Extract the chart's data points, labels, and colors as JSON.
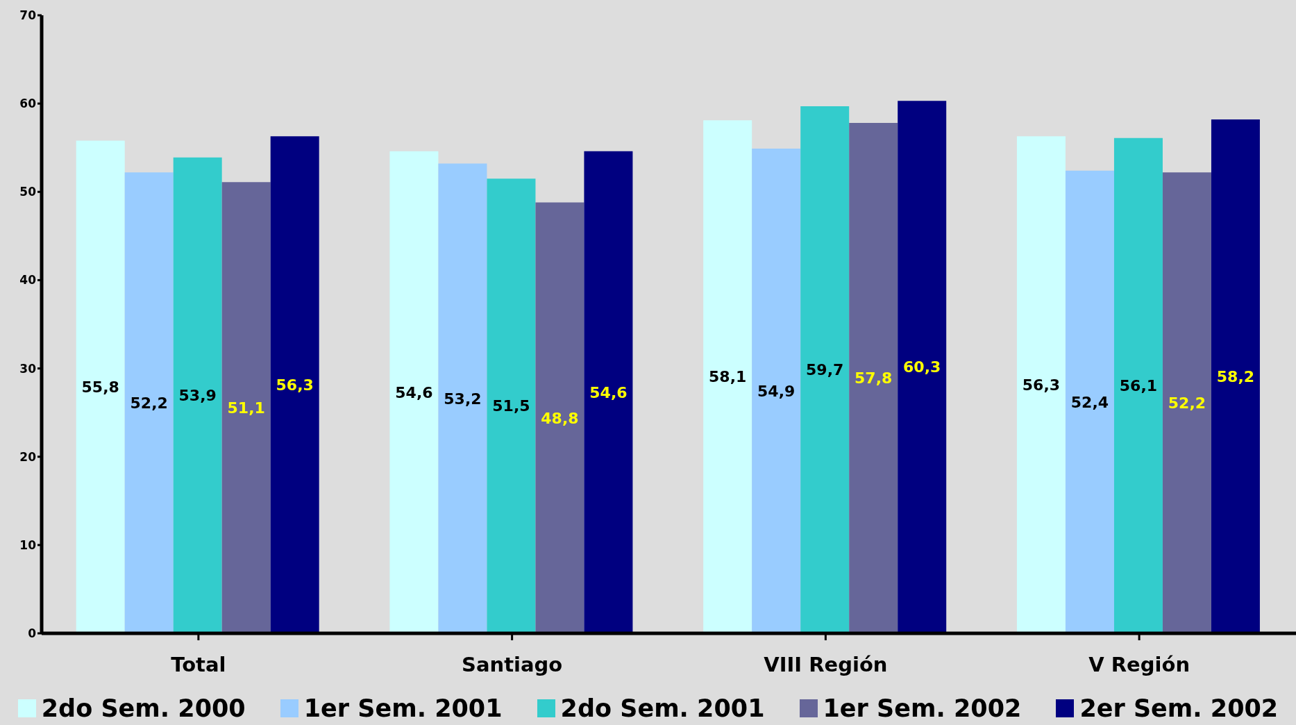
{
  "chart_data": {
    "type": "bar",
    "categories": [
      "Total",
      "Santiago",
      "VIII Región",
      "V Región"
    ],
    "series": [
      {
        "name": "2do Sem. 2000",
        "color": "#ccffff",
        "values": [
          55.8,
          54.6,
          58.1,
          56.3
        ],
        "value_labels": [
          "55,8",
          "54,6",
          "58,1",
          "56,3"
        ]
      },
      {
        "name": "1er Sem. 2001",
        "color": "#99ccff",
        "values": [
          52.2,
          53.2,
          54.9,
          52.4
        ],
        "value_labels": [
          "52,2",
          "53,2",
          "54,9",
          "52,4"
        ]
      },
      {
        "name": "2do Sem. 2001",
        "color": "#33cccc",
        "values": [
          53.9,
          51.5,
          59.7,
          56.1
        ],
        "value_labels": [
          "53,9",
          "51,5",
          "59,7",
          "56,1"
        ]
      },
      {
        "name": "1er Sem. 2002",
        "color": "#666699",
        "values": [
          51.1,
          48.8,
          57.8,
          52.2
        ],
        "value_labels": [
          "51,1",
          "48,8",
          "57,8",
          "52,2"
        ]
      },
      {
        "name": "2er Sem. 2002",
        "color": "#000080",
        "values": [
          56.3,
          54.6,
          60.3,
          58.2
        ],
        "value_labels": [
          "56,3",
          "54,6",
          "60,3",
          "58,2"
        ]
      }
    ],
    "ylim": [
      0,
      70
    ],
    "yticks": [
      0,
      10,
      20,
      30,
      40,
      50,
      60,
      70
    ],
    "grid": false,
    "legend": "bottom"
  }
}
